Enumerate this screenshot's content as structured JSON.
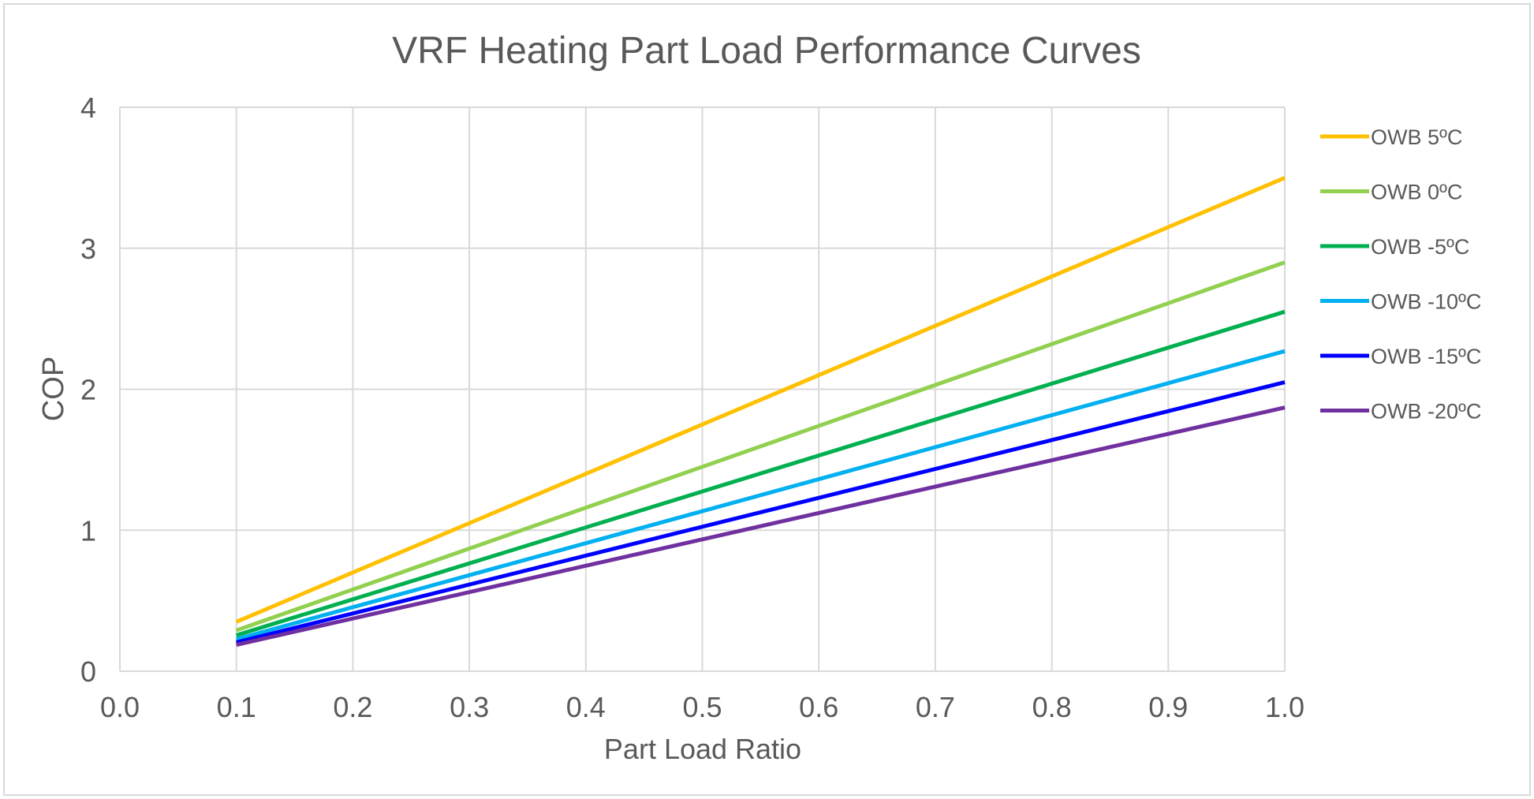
{
  "chart_data": {
    "type": "line",
    "title": "VRF Heating Part Load Performance Curves",
    "xlabel": "Part Load Ratio",
    "ylabel": "COP",
    "xlim": [
      0.0,
      1.0
    ],
    "ylim": [
      0,
      4
    ],
    "x_ticks": [
      "0.0",
      "0.1",
      "0.2",
      "0.3",
      "0.4",
      "0.5",
      "0.6",
      "0.7",
      "0.8",
      "0.9",
      "1.0"
    ],
    "y_ticks": [
      "0",
      "1",
      "2",
      "3",
      "4"
    ],
    "grid": true,
    "legend_position": "right",
    "x": [
      0.1,
      1.0
    ],
    "series": [
      {
        "name": "OWB 5ºC",
        "values": [
          0.35,
          3.5
        ],
        "color": "#FFC000"
      },
      {
        "name": "OWB 0ºC",
        "values": [
          0.29,
          2.9
        ],
        "color": "#92D050"
      },
      {
        "name": "OWB -5ºC",
        "values": [
          0.255,
          2.55
        ],
        "color": "#00B050"
      },
      {
        "name": "OWB -10ºC",
        "values": [
          0.227,
          2.27
        ],
        "color": "#00B0F0"
      },
      {
        "name": "OWB -15ºC",
        "values": [
          0.205,
          2.05
        ],
        "color": "#0000FF"
      },
      {
        "name": "OWB -20ºC",
        "values": [
          0.187,
          1.87
        ],
        "color": "#7030A0"
      }
    ]
  }
}
